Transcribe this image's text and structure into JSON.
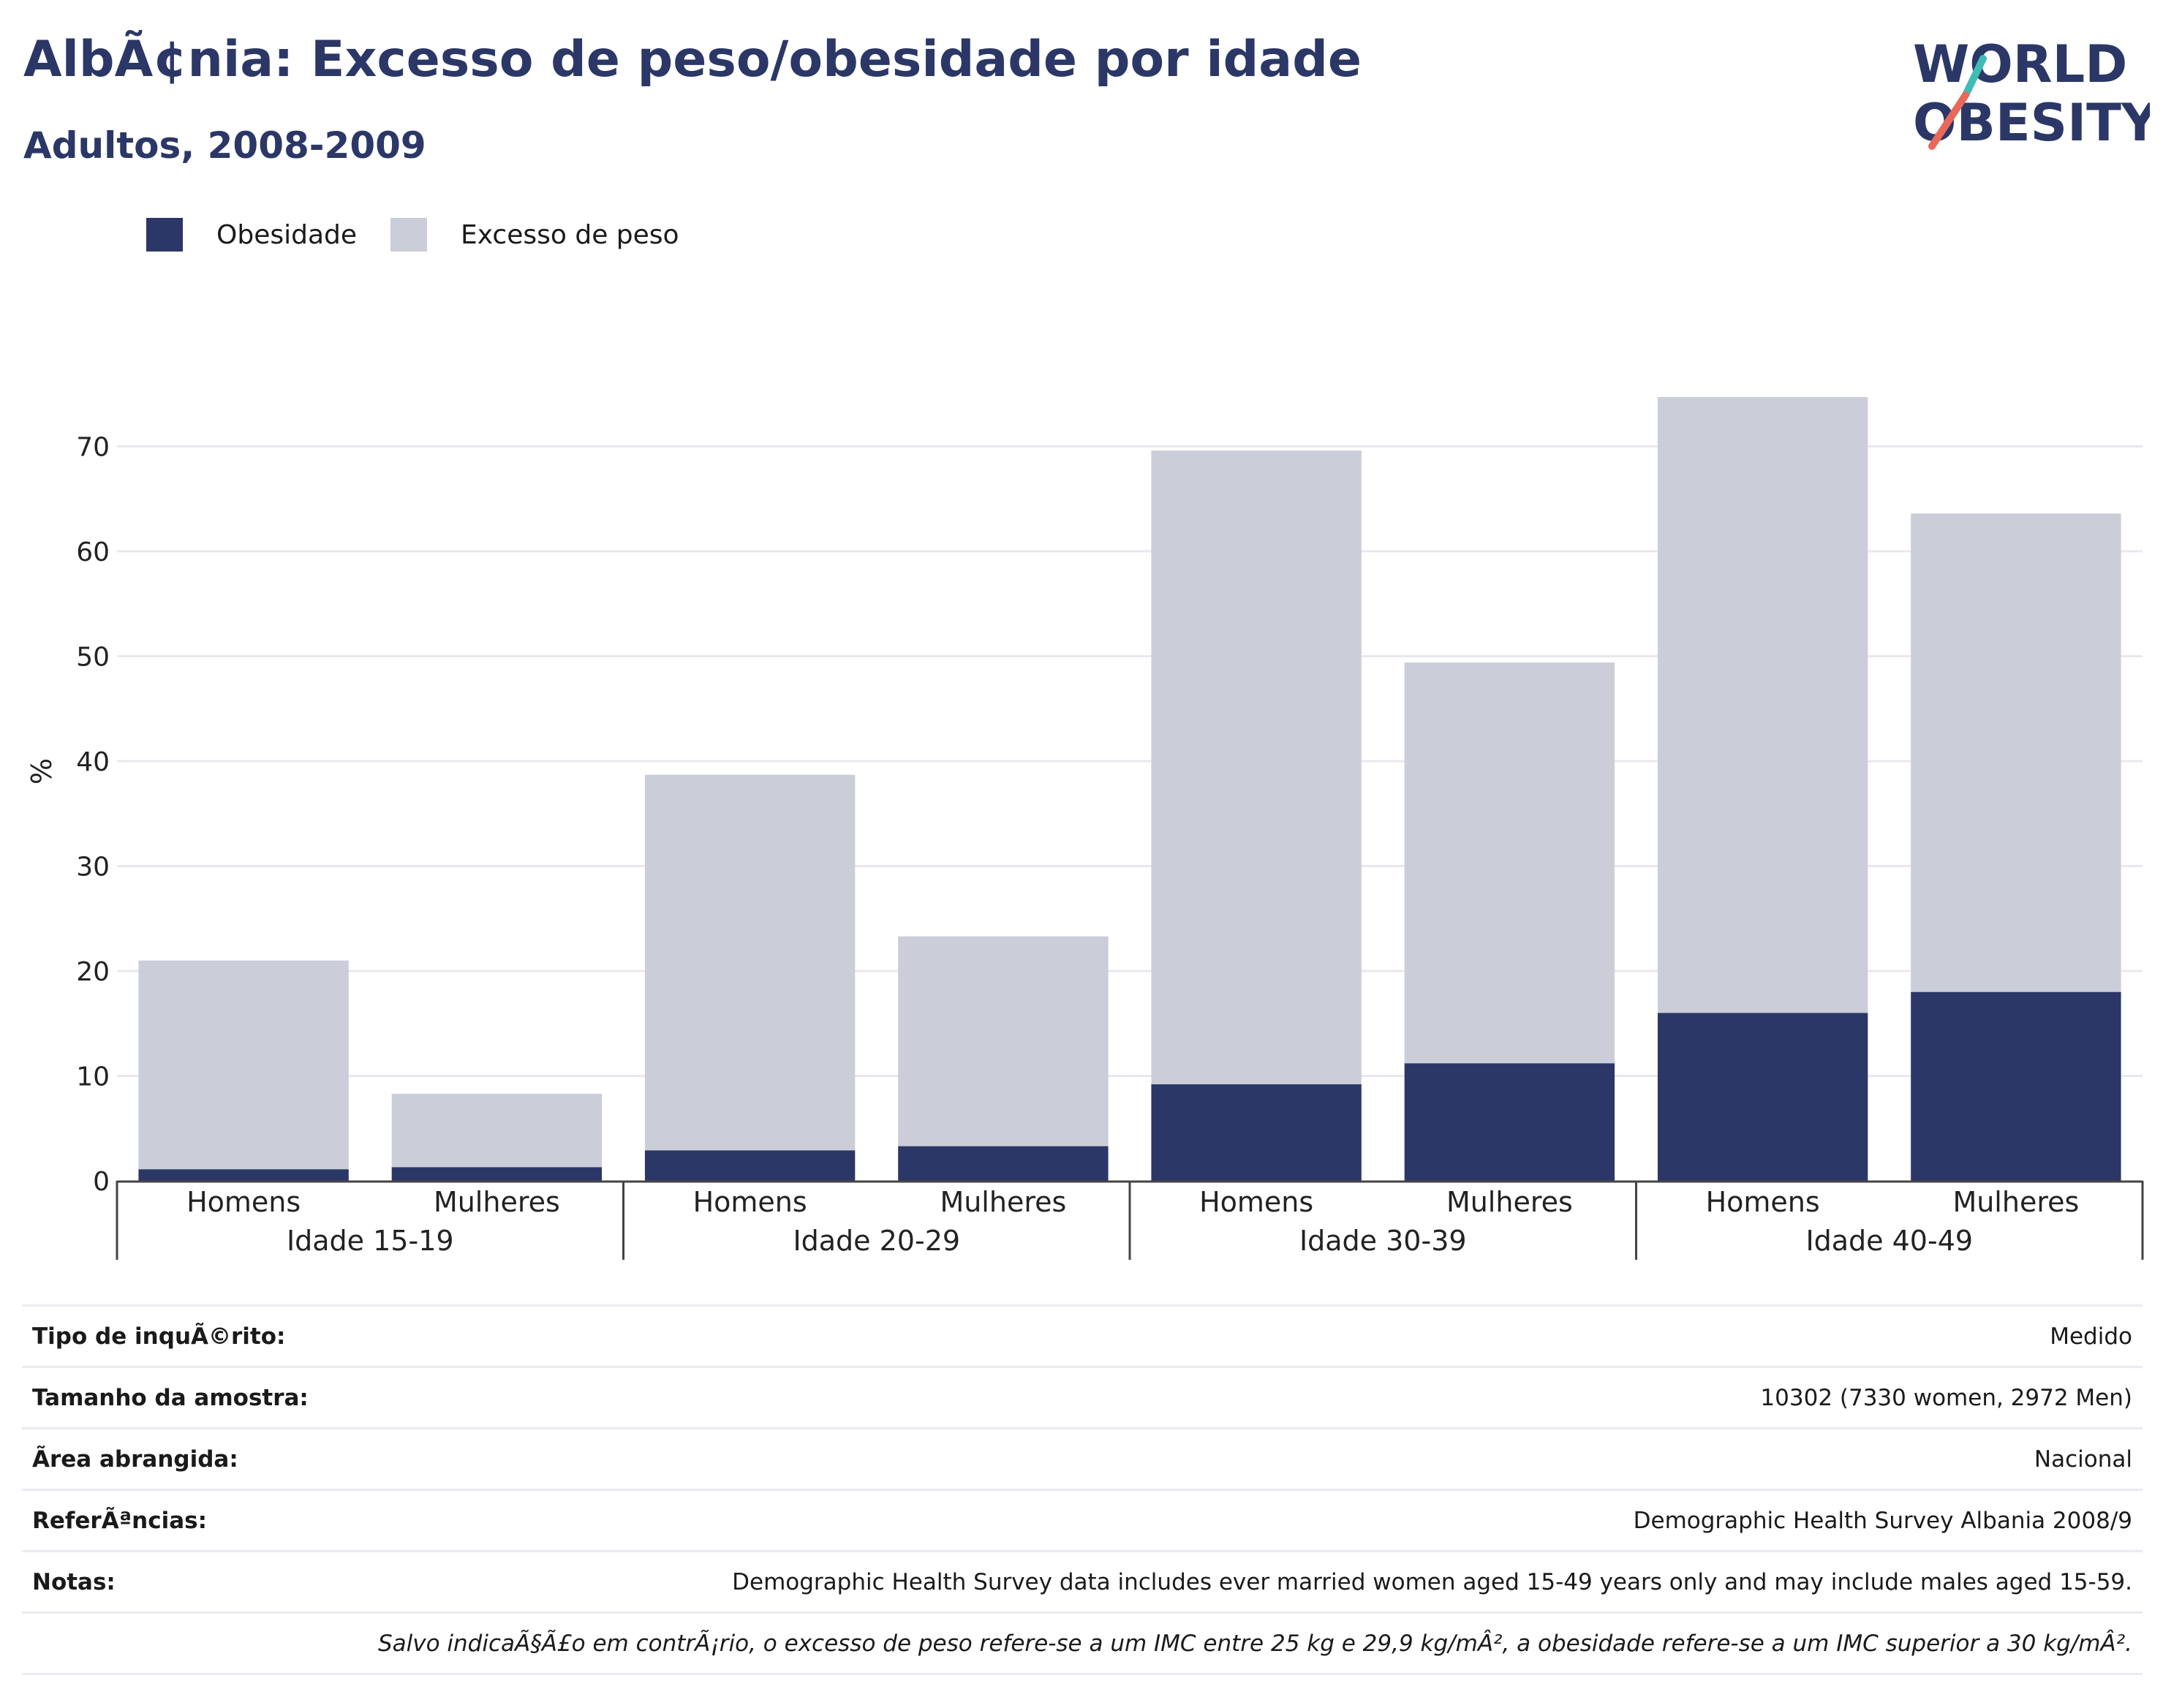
{
  "header": {
    "title": "AlbÃ¢nia: Excesso de peso/obesidade por idade",
    "subtitle": "Adultos, 2008-2009"
  },
  "logo": {
    "line1": "WORLD",
    "line2": "OBESITY",
    "accent_colors": [
      "#3fbcb4",
      "#e8685a"
    ]
  },
  "legend": [
    {
      "label": "Obesidade",
      "color": "#2b3766"
    },
    {
      "label": "Excesso de peso",
      "color": "#cbcdd8"
    }
  ],
  "chart_data": {
    "type": "bar",
    "stacked": true,
    "ylabel": "%",
    "ylim": [
      0,
      80
    ],
    "yticks": [
      0,
      10,
      20,
      30,
      40,
      50,
      60,
      70
    ],
    "grid": true,
    "legend_position": "top-left",
    "groups": [
      "Idade 15-19",
      "Idade 20-29",
      "Idade 30-39",
      "Idade 40-49"
    ],
    "categories": [
      "Homens",
      "Mulheres",
      "Homens",
      "Mulheres",
      "Homens",
      "Mulheres",
      "Homens",
      "Mulheres"
    ],
    "series": [
      {
        "name": "Obesidade",
        "color": "#2b3766",
        "values": [
          1.1,
          1.3,
          2.9,
          3.3,
          9.2,
          11.2,
          16.0,
          18.0
        ]
      },
      {
        "name": "Excesso de peso",
        "color": "#cbcdd8",
        "values": [
          19.9,
          7.0,
          35.8,
          20.0,
          60.4,
          38.2,
          58.7,
          45.6
        ]
      }
    ]
  },
  "info": {
    "rows": [
      {
        "label": "Tipo de inquÃ©rito:",
        "value": "Medido"
      },
      {
        "label": "Tamanho da amostra:",
        "value": "10302 (7330 women, 2972 Men)"
      },
      {
        "label": "Ãrea abrangida:",
        "value": "Nacional"
      },
      {
        "label": "ReferÃªncias:",
        "value": "Demographic Health Survey Albania 2008/9"
      },
      {
        "label": "Notas:",
        "value": "Demographic Health Survey data includes ever married women aged 15-49 years only and may include males aged 15-59."
      }
    ],
    "footnote": "Salvo indicaÃ§Ã£o em contrÃ¡rio, o excesso de peso refere-se a um IMC entre 25 kg e 29,9 kg/mÂ², a obesidade refere-se a um IMC superior a 30 kg/mÂ²."
  }
}
